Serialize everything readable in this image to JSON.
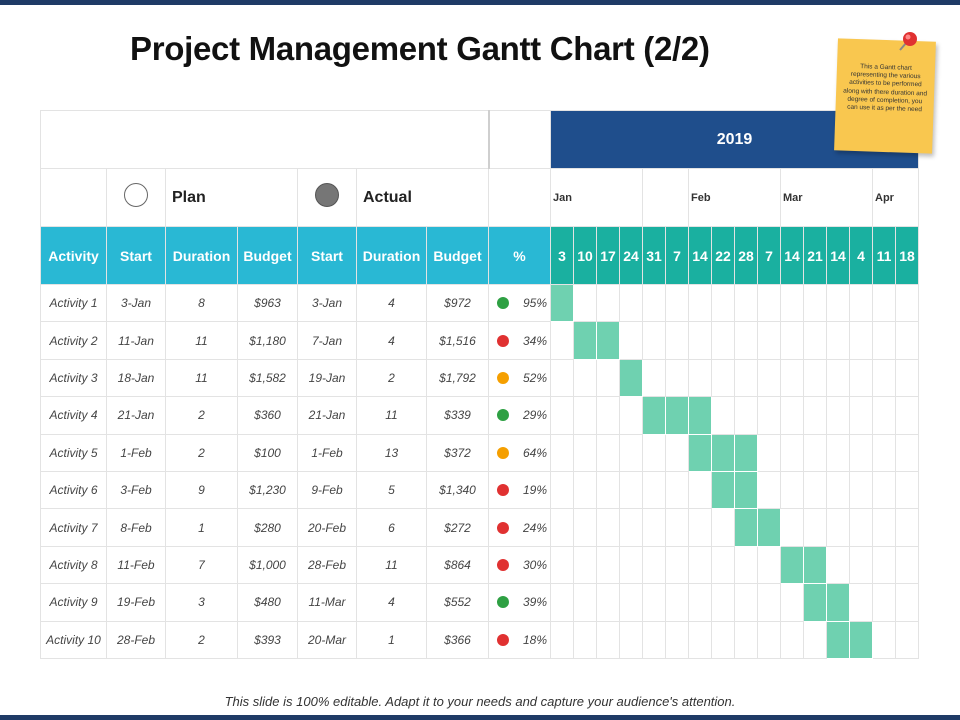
{
  "title": "Project Management Gantt Chart (2/2)",
  "footer": "This slide is 100% editable. Adapt it to your needs and capture your audience's  attention.",
  "sticky_note": "This a Gantt chart representing the various activities to be performed along with there duration and degree of completion, you can use it as per the need",
  "year": "2019",
  "legend": {
    "plan": "Plan",
    "actual": "Actual"
  },
  "months": [
    "Jan",
    "Feb",
    "Mar",
    "Apr"
  ],
  "headers": [
    "Activity",
    "Start",
    "Duration",
    "Budget",
    "Start",
    "Duration",
    "Budget",
    "%"
  ],
  "weeks": [
    "3",
    "10",
    "17",
    "24",
    "31",
    "7",
    "14",
    "22",
    "28",
    "7",
    "14",
    "21",
    "14",
    "4",
    "11",
    "18"
  ],
  "colors": {
    "header": "#29b8d4",
    "week_header": "#1ab0a0",
    "year": "#1f4e8c",
    "bar": "#6fd1b0",
    "green": "#2ea043",
    "red": "#e03131",
    "orange": "#f59f00"
  },
  "activities": [
    {
      "name": "Activity 1",
      "plan_start": "3-Jan",
      "plan_duration": "8",
      "plan_budget": "$963",
      "actual_start": "3-Jan",
      "actual_duration": "4",
      "actual_budget": "$972",
      "pct": "95%",
      "status": "green",
      "bar_start": 0,
      "bar_len": 1
    },
    {
      "name": "Activity 2",
      "plan_start": "11-Jan",
      "plan_duration": "11",
      "plan_budget": "$1,180",
      "actual_start": "7-Jan",
      "actual_duration": "4",
      "actual_budget": "$1,516",
      "pct": "34%",
      "status": "red",
      "bar_start": 1,
      "bar_len": 2
    },
    {
      "name": "Activity 3",
      "plan_start": "18-Jan",
      "plan_duration": "11",
      "plan_budget": "$1,582",
      "actual_start": "19-Jan",
      "actual_duration": "2",
      "actual_budget": "$1,792",
      "pct": "52%",
      "status": "orange",
      "bar_start": 3,
      "bar_len": 1
    },
    {
      "name": "Activity 4",
      "plan_start": "21-Jan",
      "plan_duration": "2",
      "plan_budget": "$360",
      "actual_start": "21-Jan",
      "actual_duration": "11",
      "actual_budget": "$339",
      "pct": "29%",
      "status": "green",
      "bar_start": 4,
      "bar_len": 3
    },
    {
      "name": "Activity 5",
      "plan_start": "1-Feb",
      "plan_duration": "2",
      "plan_budget": "$100",
      "actual_start": "1-Feb",
      "actual_duration": "13",
      "actual_budget": "$372",
      "pct": "64%",
      "status": "orange",
      "bar_start": 6,
      "bar_len": 3
    },
    {
      "name": "Activity 6",
      "plan_start": "3-Feb",
      "plan_duration": "9",
      "plan_budget": "$1,230",
      "actual_start": "9-Feb",
      "actual_duration": "5",
      "actual_budget": "$1,340",
      "pct": "19%",
      "status": "red",
      "bar_start": 7,
      "bar_len": 2
    },
    {
      "name": "Activity 7",
      "plan_start": "8-Feb",
      "plan_duration": "1",
      "plan_budget": "$280",
      "actual_start": "20-Feb",
      "actual_duration": "6",
      "actual_budget": "$272",
      "pct": "24%",
      "status": "red",
      "bar_start": 8,
      "bar_len": 2
    },
    {
      "name": "Activity 8",
      "plan_start": "11-Feb",
      "plan_duration": "7",
      "plan_budget": "$1,000",
      "actual_start": "28-Feb",
      "actual_duration": "11",
      "actual_budget": "$864",
      "pct": "30%",
      "status": "red",
      "bar_start": 10,
      "bar_len": 2
    },
    {
      "name": "Activity 9",
      "plan_start": "19-Feb",
      "plan_duration": "3",
      "plan_budget": "$480",
      "actual_start": "11-Mar",
      "actual_duration": "4",
      "actual_budget": "$552",
      "pct": "39%",
      "status": "green",
      "bar_start": 11,
      "bar_len": 2
    },
    {
      "name": "Activity 10",
      "plan_start": "28-Feb",
      "plan_duration": "2",
      "plan_budget": "$393",
      "actual_start": "20-Mar",
      "actual_duration": "1",
      "actual_budget": "$366",
      "pct": "18%",
      "status": "red",
      "bar_start": 12,
      "bar_len": 2
    }
  ]
}
